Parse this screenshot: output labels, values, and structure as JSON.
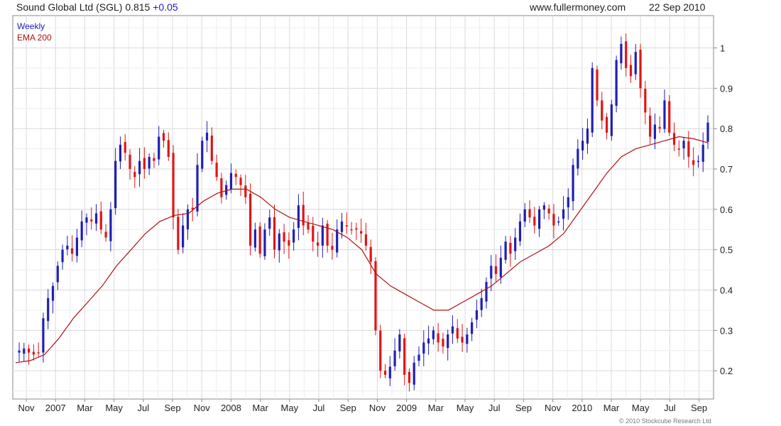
{
  "header": {
    "title": "Sound Global Ltd (SGL)",
    "price": "0.815",
    "change": "+0.05",
    "site": "www.fullermoney.com",
    "date": "22 Sep 2010"
  },
  "legend": {
    "weekly": "Weekly",
    "ema": "EMA 200"
  },
  "footer": {
    "copyright": "© 2010 Stockcube Research Ltd"
  },
  "colors": {
    "up": "#1f1fb4",
    "down": "#e01515",
    "ema": "#b01010",
    "grid": "#d8d8d8",
    "frame": "#888888"
  },
  "chart_data": {
    "type": "candlestick",
    "frequency": "weekly",
    "ylim": [
      0.13,
      1.08
    ],
    "yaxis_side": "right",
    "y_ticks": [
      0.2,
      0.3,
      0.4,
      0.5,
      0.6,
      0.7,
      0.8,
      0.9,
      1
    ],
    "y_tick_labels": [
      "0.2",
      "0.3",
      "0.4",
      "0.5",
      "0.6",
      "0.7",
      "0.8",
      "0.9",
      "1"
    ],
    "x_tick_labels": [
      "Nov",
      "2007",
      "Mar",
      "May",
      "Jul",
      "Sep",
      "Nov",
      "2008",
      "Mar",
      "May",
      "Jul",
      "Sep",
      "Nov",
      "2009",
      "Mar",
      "May",
      "Jul",
      "Sep",
      "Nov",
      "2010",
      "Mar",
      "May",
      "Jul",
      "Sep"
    ],
    "grid": true,
    "series": [
      {
        "name": "Weekly",
        "kind": "candles",
        "close_points": [
          0.25,
          0.255,
          0.245,
          0.24,
          0.245,
          0.33,
          0.38,
          0.41,
          0.46,
          0.5,
          0.51,
          0.49,
          0.53,
          0.57,
          0.58,
          0.57,
          0.59,
          0.55,
          0.53,
          0.6,
          0.72,
          0.76,
          0.74,
          0.7,
          0.68,
          0.72,
          0.7,
          0.73,
          0.72,
          0.78,
          0.77,
          0.73,
          0.58,
          0.5,
          0.56,
          0.6,
          0.6,
          0.71,
          0.77,
          0.79,
          0.72,
          0.68,
          0.63,
          0.66,
          0.69,
          0.68,
          0.66,
          0.63,
          0.51,
          0.55,
          0.49,
          0.55,
          0.58,
          0.5,
          0.54,
          0.52,
          0.51,
          0.55,
          0.61,
          0.56,
          0.55,
          0.52,
          0.51,
          0.56,
          0.51,
          0.5,
          0.55,
          0.57,
          0.56,
          0.55,
          0.55,
          0.54,
          0.51,
          0.47,
          0.3,
          0.2,
          0.19,
          0.21,
          0.25,
          0.29,
          0.19,
          0.17,
          0.22,
          0.24,
          0.27,
          0.28,
          0.3,
          0.27,
          0.26,
          0.29,
          0.31,
          0.28,
          0.27,
          0.29,
          0.32,
          0.35,
          0.38,
          0.42,
          0.46,
          0.44,
          0.48,
          0.52,
          0.49,
          0.53,
          0.57,
          0.6,
          0.58,
          0.56,
          0.6,
          0.61,
          0.59,
          0.56,
          0.57,
          0.6,
          0.63,
          0.71,
          0.75,
          0.77,
          0.8,
          0.95,
          0.87,
          0.82,
          0.79,
          0.86,
          0.97,
          1.01,
          0.95,
          0.93,
          0.99,
          0.9,
          0.84,
          0.78,
          0.81,
          0.8,
          0.87,
          0.79,
          0.76,
          0.75,
          0.77,
          0.73,
          0.71,
          0.72,
          0.76,
          0.815
        ],
        "high": 1.04,
        "low": 0.16
      },
      {
        "name": "EMA 200",
        "kind": "line",
        "points": [
          0.22,
          0.225,
          0.24,
          0.28,
          0.33,
          0.37,
          0.41,
          0.46,
          0.5,
          0.54,
          0.57,
          0.585,
          0.59,
          0.62,
          0.64,
          0.65,
          0.65,
          0.63,
          0.6,
          0.58,
          0.57,
          0.56,
          0.55,
          0.53,
          0.5,
          0.44,
          0.41,
          0.39,
          0.37,
          0.35,
          0.35,
          0.37,
          0.39,
          0.41,
          0.44,
          0.47,
          0.49,
          0.51,
          0.54,
          0.59,
          0.64,
          0.69,
          0.73,
          0.75,
          0.76,
          0.77,
          0.78,
          0.775,
          0.765
        ]
      }
    ]
  }
}
